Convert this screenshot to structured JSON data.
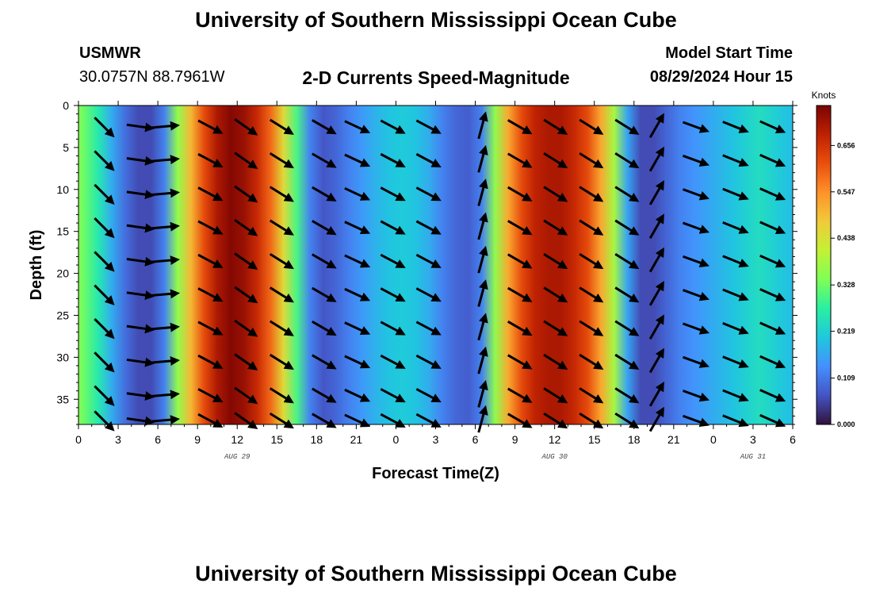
{
  "header": {
    "title": "University of Southern Mississippi Ocean Cube",
    "station": "USMWR",
    "coords": "30.0757N  88.7961W",
    "chart_title": "2-D Currents Speed-Magnitude",
    "start_label": "Model Start Time",
    "start_value": "08/29/2024 Hour 15"
  },
  "footer": {
    "title": "University of Southern Mississippi Ocean Cube"
  },
  "chart_data": {
    "type": "heatmap",
    "title": "2-D Currents Speed-Magnitude",
    "xlabel": "Forecast Time(Z)",
    "ylabel": "Depth (ft)",
    "x_hours": [
      0,
      54
    ],
    "ylim": [
      0,
      38
    ],
    "x_ticks": [
      "0",
      "3",
      "6",
      "9",
      "12",
      "15",
      "18",
      "21",
      "0",
      "3",
      "6",
      "9",
      "12",
      "15",
      "18",
      "21",
      "0",
      "3",
      "6"
    ],
    "y_ticks": [
      "0",
      "5",
      "10",
      "15",
      "20",
      "25",
      "30",
      "35"
    ],
    "date_labels": [
      {
        "hour": 12,
        "label": "AUG 29"
      },
      {
        "hour": 36,
        "label": "AUG 30"
      },
      {
        "hour": 51,
        "label": "AUG 31"
      }
    ],
    "colorbar": {
      "title": "Knots",
      "min": 0,
      "max": 0.75,
      "tick_values": [
        0.0,
        0.109,
        0.219,
        0.328,
        0.438,
        0.547,
        0.656
      ],
      "tick_labels": [
        "0.000",
        "0.109",
        "0.219",
        "0.328",
        "0.438",
        "0.547",
        "0.656"
      ],
      "colors": [
        "#30123b",
        "#4454c4",
        "#4490fe",
        "#1fc8de",
        "#29efa2",
        "#7eff55",
        "#c3f134",
        "#f1ca3a",
        "#fe922a",
        "#ea4f0d",
        "#be2102",
        "#7a0403"
      ]
    },
    "speed_profile": {
      "hours": [
        0,
        0.5,
        1.5,
        2.5,
        3.5,
        4.5,
        5.5,
        6.5,
        7.5,
        8.5,
        9.5,
        10.5,
        11.5,
        12.5,
        13.5,
        14.5,
        15.5,
        16.5,
        17.5,
        18.5,
        19.5,
        20.5,
        21.5,
        22.5,
        23.5,
        24.5,
        25.5,
        26.5,
        27.5,
        28.5,
        29.5,
        30.5,
        31.5,
        32.5,
        33.5,
        34.5,
        35.5,
        36.5,
        37.5,
        38.5,
        39.5,
        40.5,
        41.5,
        42.5,
        43.5,
        44.5,
        45.5,
        46.5,
        47.5,
        48.5,
        49.5,
        50.5,
        51.5,
        52.5,
        53.5,
        54
      ],
      "knots": [
        0.35,
        0.32,
        0.26,
        0.17,
        0.1,
        0.06,
        0.06,
        0.12,
        0.36,
        0.5,
        0.62,
        0.7,
        0.74,
        0.72,
        0.67,
        0.59,
        0.45,
        0.3,
        0.12,
        0.07,
        0.09,
        0.12,
        0.15,
        0.18,
        0.2,
        0.21,
        0.2,
        0.17,
        0.12,
        0.09,
        0.08,
        0.12,
        0.36,
        0.52,
        0.62,
        0.68,
        0.7,
        0.7,
        0.67,
        0.62,
        0.52,
        0.38,
        0.16,
        0.06,
        0.06,
        0.09,
        0.12,
        0.14,
        0.16,
        0.18,
        0.2,
        0.22,
        0.24,
        0.22,
        0.2,
        0.19
      ]
    },
    "vector_arrows": {
      "column_hours": [
        1.9,
        4.6,
        6.5,
        9.9,
        12.6,
        15.3,
        18.5,
        21.0,
        23.7,
        26.4,
        30.5,
        33.3,
        36.0,
        38.7,
        41.4,
        43.7,
        46.6,
        49.6,
        52.4,
        54
      ],
      "column_angles_deg": [
        -45,
        -8,
        5,
        -28,
        -35,
        -32,
        -30,
        -25,
        -28,
        -28,
        75,
        -30,
        -32,
        -32,
        -32,
        60,
        -20,
        -22,
        -24,
        -24
      ],
      "row_depths_ft": [
        2.5,
        6.5,
        10.5,
        14.5,
        18.5,
        22.5,
        26.5,
        30.5,
        34.5,
        37.5
      ]
    }
  }
}
